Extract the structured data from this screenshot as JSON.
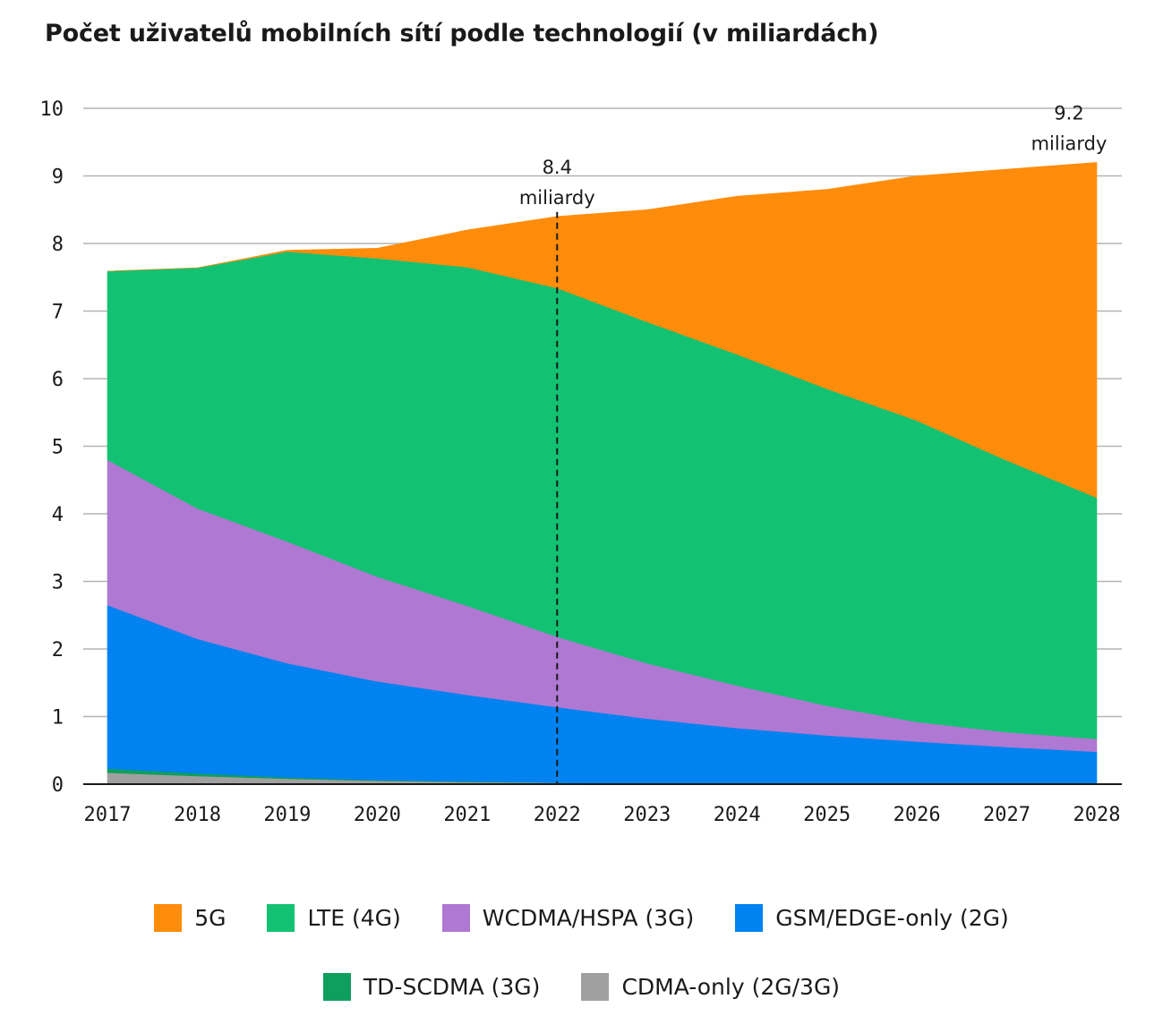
{
  "chart_data": {
    "type": "area",
    "stacked": true,
    "title": "Počet uživatelů mobilních sítí podle technologií (v miliardách)",
    "xlabel": "",
    "ylabel": "",
    "x": [
      "2017",
      "2018",
      "2019",
      "2020",
      "2021",
      "2022",
      "2023",
      "2024",
      "2025",
      "2026",
      "2027",
      "2028"
    ],
    "ylim": [
      0,
      10
    ],
    "yticks": [
      "0",
      "1",
      "2",
      "3",
      "4",
      "5",
      "6",
      "7",
      "8",
      "9",
      "10"
    ],
    "grid": true,
    "legend_position": "bottom",
    "series": [
      {
        "name": "CDMA-only (2G/3G)",
        "color": "#a0a0a0",
        "values": [
          0.17,
          0.12,
          0.08,
          0.05,
          0.03,
          0.02,
          0.01,
          0.01,
          0.01,
          0.01,
          0.01,
          0.01
        ]
      },
      {
        "name": "TD-SCDMA (3G)",
        "color": "#0f9e5e",
        "values": [
          0.06,
          0.04,
          0.02,
          0.01,
          0.01,
          0,
          0,
          0,
          0,
          0,
          0,
          0
        ]
      },
      {
        "name": "GSM/EDGE-only (2G)",
        "color": "#0082f0",
        "values": [
          2.42,
          1.99,
          1.69,
          1.46,
          1.28,
          1.12,
          0.96,
          0.82,
          0.71,
          0.62,
          0.54,
          0.47
        ]
      },
      {
        "name": "WCDMA/HSPA (3G)",
        "color": "#af78d2",
        "values": [
          2.15,
          1.93,
          1.8,
          1.55,
          1.32,
          1.04,
          0.82,
          0.63,
          0.44,
          0.29,
          0.22,
          0.19
        ]
      },
      {
        "name": "LTE (4G)",
        "color": "#12c272",
        "values": [
          2.79,
          3.56,
          4.29,
          4.71,
          5.01,
          5.16,
          5.05,
          4.9,
          4.69,
          4.46,
          4.02,
          3.57
        ]
      },
      {
        "name": "5G",
        "color": "#ff8c0a",
        "values": [
          0,
          0,
          0.02,
          0.15,
          0.55,
          1.06,
          1.66,
          2.34,
          2.95,
          3.62,
          4.31,
          4.96
        ]
      }
    ],
    "legend_order": [
      "5G",
      "LTE (4G)",
      "WCDMA/HSPA (3G)",
      "GSM/EDGE-only (2G)",
      "TD-SCDMA (3G)",
      "CDMA-only (2G/3G)"
    ],
    "annotations": [
      {
        "x": "2022",
        "value_label": "8.4",
        "unit_label": "miliardy",
        "dashed_line": true
      },
      {
        "x": "2028",
        "value_label": "9.2",
        "unit_label": "miliardy",
        "dashed_line": false
      }
    ]
  }
}
